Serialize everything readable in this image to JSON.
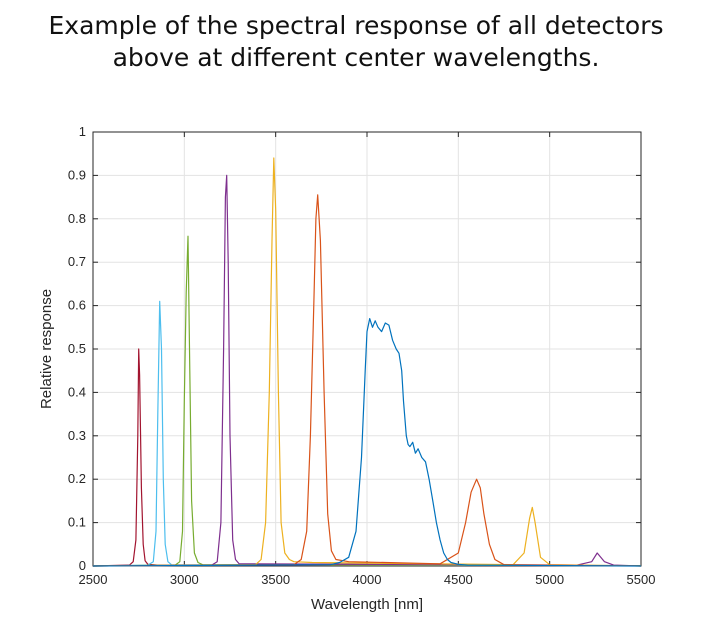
{
  "chart_data": {
    "type": "line",
    "title_line1": "Example of the spectral response of all detectors",
    "title_line2": "above at different center wavelengths.",
    "xlabel": "Wavelength [nm]",
    "ylabel": "Relative response",
    "xlim": [
      2500,
      5500
    ],
    "ylim": [
      0,
      1
    ],
    "xticks": [
      2500,
      3000,
      3500,
      4000,
      4500,
      5000,
      5500
    ],
    "yticks": [
      0,
      0.1,
      0.2,
      0.3,
      0.4,
      0.5,
      0.6,
      0.7,
      0.8,
      0.9,
      1
    ],
    "grid": true,
    "series": [
      {
        "color": "#A2142F",
        "x": [
          2500,
          2700,
          2720,
          2735,
          2745,
          2750,
          2755,
          2765,
          2775,
          2785,
          2800,
          2850,
          5500
        ],
        "y": [
          0,
          0.002,
          0.01,
          0.06,
          0.3,
          0.5,
          0.44,
          0.18,
          0.05,
          0.012,
          0.004,
          0.002,
          0.001
        ]
      },
      {
        "color": "#4DBEEE",
        "x": [
          2500,
          2800,
          2830,
          2845,
          2855,
          2865,
          2875,
          2885,
          2895,
          2910,
          2930,
          5500
        ],
        "y": [
          0,
          0.002,
          0.01,
          0.08,
          0.35,
          0.61,
          0.5,
          0.2,
          0.05,
          0.01,
          0.003,
          0.001
        ]
      },
      {
        "color": "#77AC30",
        "x": [
          2500,
          2950,
          2975,
          2990,
          3000,
          3010,
          3020,
          3030,
          3040,
          3055,
          3075,
          3100,
          5500
        ],
        "y": [
          0,
          0.002,
          0.01,
          0.08,
          0.38,
          0.63,
          0.76,
          0.45,
          0.15,
          0.03,
          0.008,
          0.003,
          0.001
        ]
      },
      {
        "color": "#7E2F8E",
        "x": [
          2500,
          3150,
          3180,
          3200,
          3215,
          3225,
          3232,
          3240,
          3250,
          3265,
          3280,
          3300,
          5150,
          5230,
          5260,
          5300,
          5350,
          5500
        ],
        "y": [
          0,
          0.002,
          0.01,
          0.1,
          0.5,
          0.85,
          0.9,
          0.7,
          0.3,
          0.06,
          0.015,
          0.005,
          0.002,
          0.01,
          0.03,
          0.01,
          0.002,
          0
        ]
      },
      {
        "color": "#EDB120",
        "x": [
          2500,
          3390,
          3420,
          3445,
          3465,
          3480,
          3490,
          3500,
          3515,
          3530,
          3550,
          3575,
          3600,
          3700,
          4800,
          4860,
          4890,
          4905,
          4920,
          4950,
          5000,
          5500
        ],
        "y": [
          0,
          0.003,
          0.015,
          0.1,
          0.4,
          0.75,
          0.94,
          0.82,
          0.4,
          0.1,
          0.03,
          0.015,
          0.01,
          0.008,
          0.003,
          0.03,
          0.11,
          0.135,
          0.1,
          0.02,
          0.003,
          0
        ]
      },
      {
        "color": "#D95319",
        "x": [
          2500,
          3600,
          3640,
          3670,
          3690,
          3710,
          3720,
          3730,
          3745,
          3765,
          3785,
          3805,
          3830,
          3900,
          4100,
          4400,
          4500,
          4540,
          4570,
          4600,
          4620,
          4640,
          4670,
          4700,
          4750,
          5500
        ],
        "y": [
          0,
          0.003,
          0.015,
          0.08,
          0.3,
          0.62,
          0.8,
          0.855,
          0.75,
          0.4,
          0.12,
          0.035,
          0.015,
          0.01,
          0.008,
          0.005,
          0.03,
          0.1,
          0.17,
          0.2,
          0.18,
          0.12,
          0.05,
          0.015,
          0.003,
          0
        ]
      },
      {
        "color": "#0072BD",
        "x": [
          2500,
          3800,
          3850,
          3900,
          3940,
          3970,
          3990,
          4000,
          4015,
          4030,
          4045,
          4060,
          4080,
          4100,
          4120,
          4140,
          4160,
          4175,
          4190,
          4200,
          4215,
          4225,
          4235,
          4250,
          4265,
          4280,
          4300,
          4320,
          4340,
          4360,
          4380,
          4400,
          4420,
          4440,
          4460,
          4500,
          4550,
          5500
        ],
        "y": [
          0,
          0.003,
          0.008,
          0.02,
          0.08,
          0.25,
          0.45,
          0.54,
          0.57,
          0.55,
          0.565,
          0.55,
          0.54,
          0.56,
          0.555,
          0.52,
          0.5,
          0.49,
          0.45,
          0.38,
          0.3,
          0.28,
          0.275,
          0.285,
          0.26,
          0.27,
          0.25,
          0.24,
          0.2,
          0.15,
          0.1,
          0.06,
          0.03,
          0.015,
          0.008,
          0.004,
          0.002,
          0
        ]
      }
    ]
  }
}
